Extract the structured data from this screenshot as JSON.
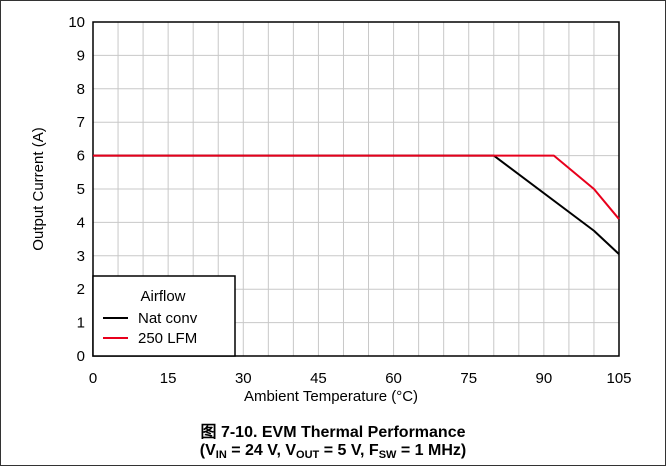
{
  "chart_data": {
    "type": "line",
    "title": "",
    "xlabel": "Ambient Temperature (°C)",
    "ylabel": "Output Current (A)",
    "xlim": [
      0,
      105
    ],
    "ylim": [
      0,
      10
    ],
    "xticks": [
      0,
      15,
      30,
      45,
      60,
      75,
      90,
      105
    ],
    "yticks": [
      0,
      1,
      2,
      3,
      4,
      5,
      6,
      7,
      8,
      9,
      10
    ],
    "grid": true,
    "legend": {
      "title": "Airflow",
      "placement": "bottom-left"
    },
    "series": [
      {
        "name": "Nat conv",
        "color": "#000000",
        "x": [
          0,
          80,
          100,
          105
        ],
        "y": [
          6,
          6,
          3.75,
          3.05
        ]
      },
      {
        "name": "250 LFM",
        "color": "#e8001c",
        "x": [
          0,
          92,
          100,
          105
        ],
        "y": [
          6,
          6,
          5,
          4.1
        ]
      }
    ]
  },
  "caption": {
    "figure_label": "图 7-10. EVM Thermal Performance",
    "conditions": {
      "open": "(V",
      "vin_sub": "IN",
      "vin_val": " = 24 V, V",
      "vout_sub": "OUT",
      "vout_val": " = 5 V, F",
      "fsw_sub": "SW",
      "fsw_val": " = 1 MHz)"
    }
  }
}
